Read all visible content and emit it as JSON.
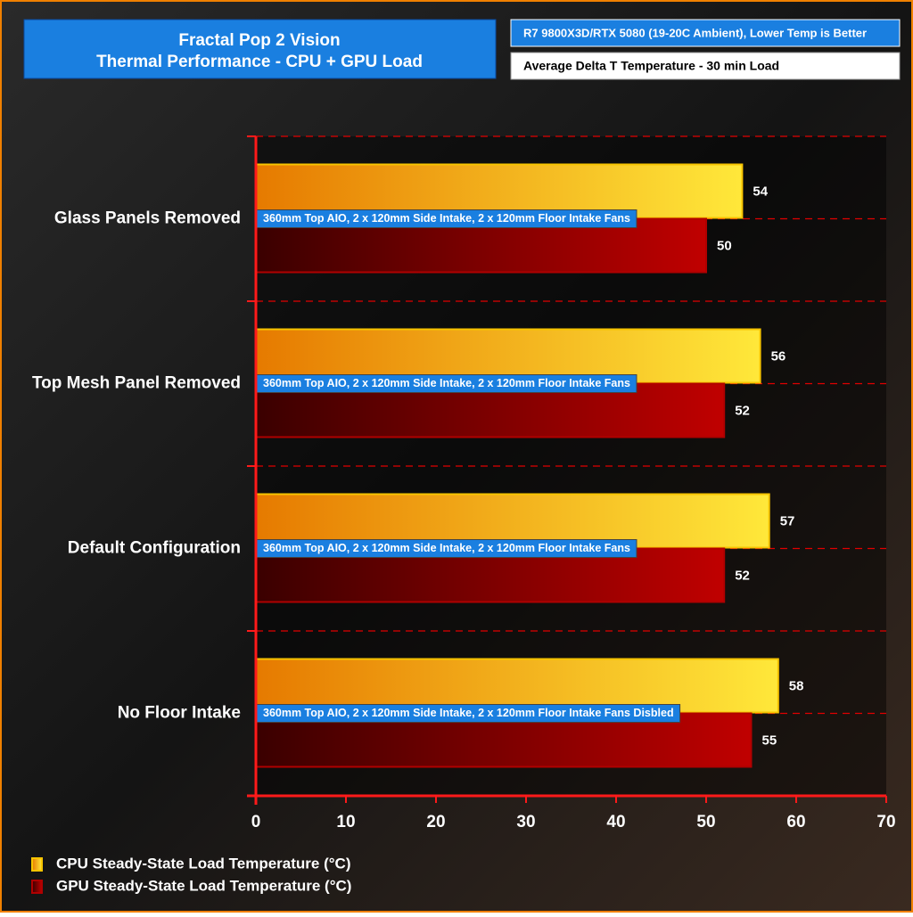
{
  "chart_data": {
    "type": "hbar",
    "title": "Fractal Pop 2 Vision",
    "subtitle": "Thermal Performance - CPU + GPU Load",
    "info": "R7 9800X3D/RTX 5080 (19-20C Ambient), Lower Temp is Better",
    "metric": "Average Delta T Temperature - 30 min Load",
    "categories": [
      "Glass Panels Removed",
      "Top Mesh Panel Removed",
      "Default Configuration",
      "No Floor Intake"
    ],
    "annotations": [
      "360mm Top AIO, 2 x 120mm Side Intake, 2 x 120mm Floor Intake Fans",
      "360mm Top AIO, 2 x 120mm Side Intake, 2 x 120mm Floor Intake Fans",
      "360mm Top AIO, 2 x 120mm Side Intake, 2 x 120mm Floor Intake Fans",
      "360mm Top AIO, 2 x 120mm Side Intake, 2 x 120mm Floor Intake Fans Disbled"
    ],
    "series": [
      {
        "name": "CPU Steady-State Load Temperature (°C)",
        "color": "#f7c400",
        "values": [
          54,
          56,
          57,
          58
        ]
      },
      {
        "name": "GPU Steady-State Load Temperature (°C)",
        "color": "#b00000",
        "values": [
          50,
          52,
          52,
          55
        ]
      }
    ],
    "xlim": [
      0,
      70
    ],
    "xticks": [
      0,
      10,
      20,
      30,
      40,
      50,
      60,
      70
    ]
  }
}
